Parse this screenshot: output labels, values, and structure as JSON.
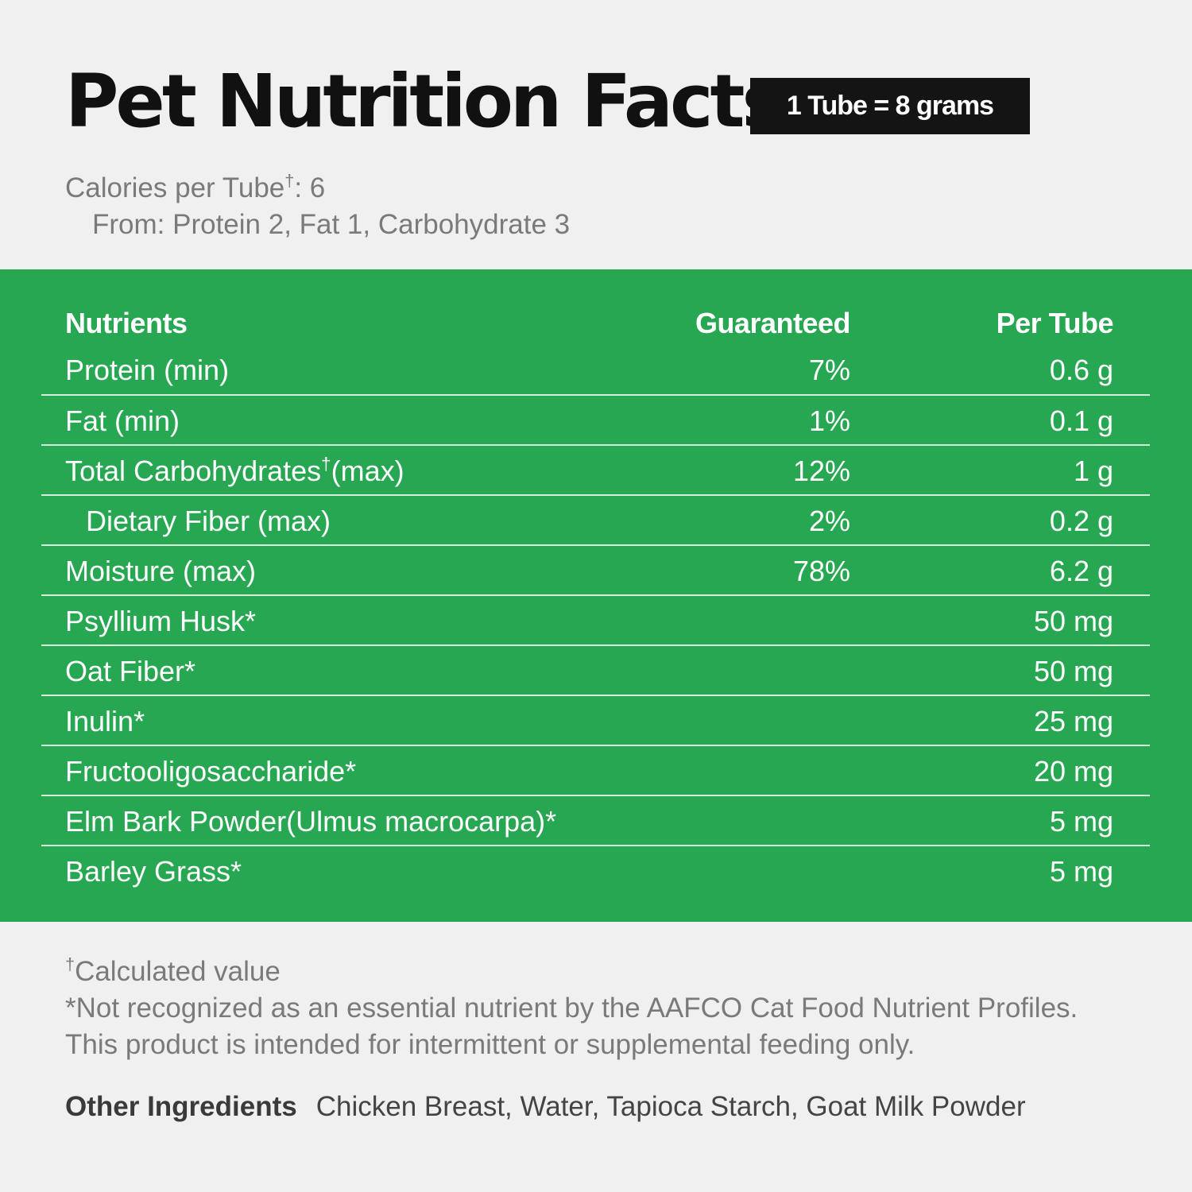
{
  "header": {
    "title": "Pet Nutrition Facts",
    "serving_size": "1 Tube = 8 grams"
  },
  "calories": {
    "line_label": "Calories per Tube",
    "dagger": "†",
    "line_value": ": 6",
    "from": "From: Protein 2, Fat 1, Carbohydrate 3"
  },
  "table": {
    "headers": [
      "Nutrients",
      "Guaranteed",
      "Per Tube"
    ],
    "rows": [
      {
        "nutrient": "Protein (min)",
        "guaranteed": "7%",
        "per_tube": "0.6 g"
      },
      {
        "nutrient": "Fat (min)",
        "guaranteed": "1%",
        "per_tube": "0.1 g"
      },
      {
        "nutrient": "Total Carbohydrates",
        "dagger": "†",
        "nutrient_suffix": "(max)",
        "guaranteed": "12%",
        "per_tube": "1 g"
      },
      {
        "nutrient": "Dietary Fiber (max)",
        "guaranteed": "2%",
        "per_tube": "0.2 g"
      },
      {
        "nutrient": "Moisture (max)",
        "guaranteed": "78%",
        "per_tube": "6.2 g"
      },
      {
        "nutrient": "Psyllium Husk*",
        "guaranteed": "",
        "per_tube": "50 mg"
      },
      {
        "nutrient": "Oat Fiber*",
        "guaranteed": "",
        "per_tube": "50 mg"
      },
      {
        "nutrient": "Inulin*",
        "guaranteed": "",
        "per_tube": "25 mg"
      },
      {
        "nutrient": "Fructooligosaccharide*",
        "guaranteed": "",
        "per_tube": "20 mg"
      },
      {
        "nutrient": "Elm Bark Powder(Ulmus macrocarpa)*",
        "guaranteed": "",
        "per_tube": "5 mg"
      },
      {
        "nutrient": "Barley Grass*",
        "guaranteed": "",
        "per_tube": "5 mg"
      }
    ]
  },
  "footnotes": {
    "dagger": "†",
    "calculated": "Calculated value",
    "not_recognized": "*Not recognized as an essential nutrient by the AAFCO Cat Food Nutrient Profiles.",
    "intermittent": "This product is intended for intermittent or supplemental feeding only."
  },
  "other_ingredients": {
    "label": "Other Ingredients",
    "value": "Chicken Breast, Water, Tapioca Starch, Goat Milk Powder"
  },
  "colors": {
    "panel_green": "#28a753",
    "badge_black": "#141414",
    "background": "#f0f0f0"
  }
}
